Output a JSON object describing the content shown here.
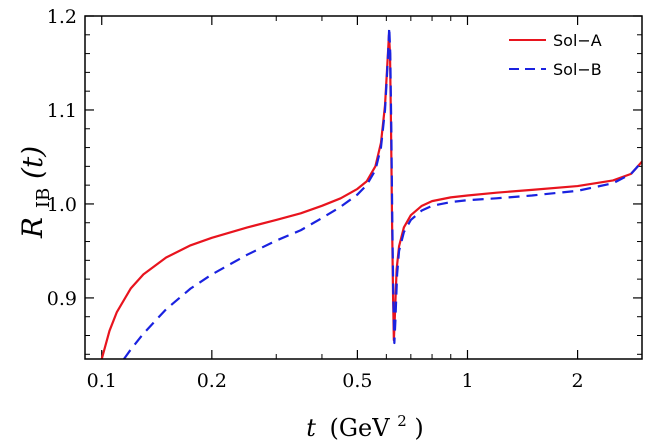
{
  "chart_data": {
    "type": "line",
    "xscale": "log",
    "xlim": [
      0.09,
      3.0
    ],
    "ylim": [
      0.835,
      1.2
    ],
    "xlabel": {
      "var": "t",
      "unit": "(GeV",
      "sup": "2",
      "close": ")"
    },
    "ylabel": {
      "main": "R",
      "sub": "IB",
      "arg": "(t)"
    },
    "xticks": [
      {
        "value": 0.1,
        "label": "0.1"
      },
      {
        "value": 0.2,
        "label": "0.2"
      },
      {
        "value": 0.5,
        "label": "0.5"
      },
      {
        "value": 1,
        "label": "1"
      },
      {
        "value": 2,
        "label": "2"
      }
    ],
    "yticks": [
      {
        "value": 0.9,
        "label": "0.9"
      },
      {
        "value": 1.0,
        "label": "1.0"
      },
      {
        "value": 1.1,
        "label": "1.1"
      },
      {
        "value": 1.2,
        "label": "1.2"
      }
    ],
    "legend_position": "top-right",
    "series": [
      {
        "name": "Sol−A",
        "color": "#e8141e",
        "style": "solid",
        "points": [
          [
            0.1,
            0.835
          ],
          [
            0.105,
            0.865
          ],
          [
            0.11,
            0.885
          ],
          [
            0.12,
            0.91
          ],
          [
            0.13,
            0.925
          ],
          [
            0.15,
            0.943
          ],
          [
            0.175,
            0.956
          ],
          [
            0.2,
            0.964
          ],
          [
            0.25,
            0.975
          ],
          [
            0.3,
            0.983
          ],
          [
            0.35,
            0.99
          ],
          [
            0.4,
            0.998
          ],
          [
            0.45,
            1.006
          ],
          [
            0.5,
            1.016
          ],
          [
            0.53,
            1.024
          ],
          [
            0.56,
            1.04
          ],
          [
            0.58,
            1.065
          ],
          [
            0.595,
            1.105
          ],
          [
            0.602,
            1.14
          ],
          [
            0.607,
            1.165
          ],
          [
            0.61,
            1.18
          ],
          [
            0.614,
            1.16
          ],
          [
            0.618,
            1.08
          ],
          [
            0.622,
            0.98
          ],
          [
            0.626,
            0.9
          ],
          [
            0.629,
            0.855
          ],
          [
            0.633,
            0.88
          ],
          [
            0.64,
            0.93
          ],
          [
            0.65,
            0.955
          ],
          [
            0.67,
            0.975
          ],
          [
            0.7,
            0.988
          ],
          [
            0.75,
            0.998
          ],
          [
            0.8,
            1.003
          ],
          [
            0.9,
            1.007
          ],
          [
            1.0,
            1.009
          ],
          [
            1.2,
            1.012
          ],
          [
            1.5,
            1.015
          ],
          [
            2.0,
            1.019
          ],
          [
            2.5,
            1.025
          ],
          [
            2.8,
            1.032
          ],
          [
            3.0,
            1.045
          ]
        ]
      },
      {
        "name": "Sol−B",
        "color": "#1a22e0",
        "style": "dashed",
        "points": [
          [
            0.115,
            0.835
          ],
          [
            0.12,
            0.845
          ],
          [
            0.13,
            0.862
          ],
          [
            0.15,
            0.888
          ],
          [
            0.175,
            0.91
          ],
          [
            0.2,
            0.925
          ],
          [
            0.25,
            0.946
          ],
          [
            0.3,
            0.961
          ],
          [
            0.35,
            0.972
          ],
          [
            0.4,
            0.985
          ],
          [
            0.45,
            0.997
          ],
          [
            0.5,
            1.01
          ],
          [
            0.53,
            1.02
          ],
          [
            0.56,
            1.036
          ],
          [
            0.58,
            1.06
          ],
          [
            0.595,
            1.1
          ],
          [
            0.602,
            1.135
          ],
          [
            0.607,
            1.162
          ],
          [
            0.611,
            1.188
          ],
          [
            0.615,
            1.16
          ],
          [
            0.619,
            1.08
          ],
          [
            0.623,
            0.98
          ],
          [
            0.627,
            0.9
          ],
          [
            0.631,
            0.852
          ],
          [
            0.635,
            0.875
          ],
          [
            0.642,
            0.925
          ],
          [
            0.65,
            0.95
          ],
          [
            0.67,
            0.97
          ],
          [
            0.7,
            0.983
          ],
          [
            0.75,
            0.993
          ],
          [
            0.8,
            0.998
          ],
          [
            0.9,
            1.002
          ],
          [
            1.0,
            1.004
          ],
          [
            1.2,
            1.006
          ],
          [
            1.5,
            1.009
          ],
          [
            2.0,
            1.014
          ],
          [
            2.5,
            1.022
          ],
          [
            2.8,
            1.032
          ],
          [
            3.0,
            1.045
          ]
        ]
      }
    ]
  }
}
